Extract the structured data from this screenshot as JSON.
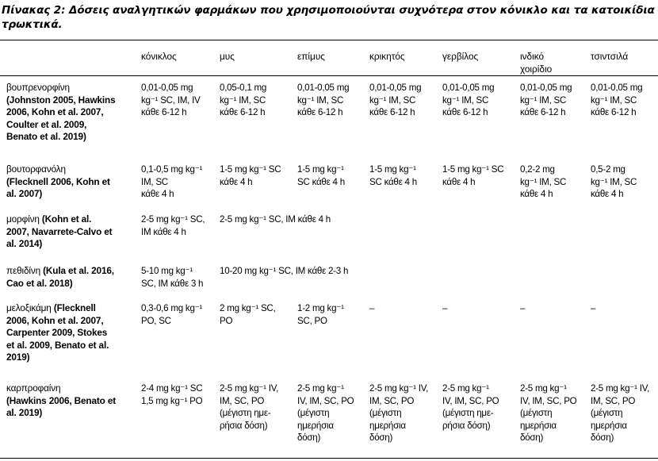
{
  "caption": {
    "label": "Πίνακας 2:",
    "text": "Δόσεις αναλγητικών φαρμάκων που χρησιμοποιούνται συχνότερα στον κόνικλο και τα κατοικίδια τρωκτικά."
  },
  "columns": [
    "κόνικλος",
    "μυς",
    "επίμυς",
    "κρικητός",
    "γερβίλος",
    "ινδικό\nχοιρίδιο",
    "τσιντσιλά"
  ],
  "rows": [
    {
      "drug": "βουπρενορφίνη",
      "refs": "(Johnston 2005, Hawkins\n2006, Kohn et al. 2007,\nCoulter et al. 2009,\nBenato et al. 2019)",
      "cells": [
        "0,01-0,05 mg\nkg⁻¹ SC, IM, IV\nκάθε 6-12 h",
        "0,05-0,1 mg\nkg⁻¹ IM, SC\nκάθε 6-12 h",
        "0,01-0,05 mg\nkg⁻¹ IM, SC\nκάθε 6-12 h",
        "0,01-0,05 mg\nkg⁻¹ IM, SC\nκάθε 6-12 h",
        "0,01-0,05 mg\nkg⁻¹ IM, SC\nκάθε 6-12 h",
        "0,01-0,05 mg\nkg⁻¹ IM, SC\nκάθε 6-12 h",
        "0,01-0,05 mg\nkg⁻¹ IM, SC\nκάθε 6-12 h"
      ]
    },
    {
      "drug": "βουτορφανόλη",
      "refs": "(Flecknell 2006, Kohn et\nal. 2007)",
      "cells": [
        "0,1-0,5 mg kg⁻¹\nIM, SC\nκάθε 4 h",
        "1-5 mg kg⁻¹ SC\nκάθε 4 h",
        "1-5 mg kg⁻¹\nSC κάθε 4 h",
        "1-5 mg kg⁻¹\nSC κάθε 4 h",
        "1-5 mg kg⁻¹ SC\nκάθε 4 h",
        "0,2-2 mg\nkg⁻¹ IM, SC\nκάθε 4 h",
        "0,5-2 mg\nkg⁻¹ IM, SC\nκάθε 4 h"
      ]
    },
    {
      "drug": "μορφίνη",
      "refs": " (Kohn et al.\n2007, Navarrete-Calvo et\nal. 2014)",
      "cells": [
        "2-5 mg kg⁻¹ SC,\nIM κάθε 4 h",
        "2-5 mg kg⁻¹ SC, IM κάθε 4 h"
      ]
    },
    {
      "drug": "πεθιδίνη",
      "refs": " (Kula et al. 2016,\nCao et al. 2018)",
      "cells": [
        "5-10 mg kg⁻¹\nSC, IM κάθε 3 h",
        "10-20 mg kg⁻¹ SC, IM κάθε 2-3 h"
      ]
    },
    {
      "drug": "μελοξικάμη",
      "refs": " (Flecknell\n2006, Kohn et al. 2007,\nCarpenter 2009, Stokes\net al. 2009, Benato et al.\n2019)",
      "cells": [
        "0,3-0,6 mg kg⁻¹\nPO, SC",
        "2 mg kg⁻¹ SC,\nPO",
        "1-2 mg kg⁻¹\nSC, PO",
        "–",
        "–",
        "–",
        "–"
      ]
    },
    {
      "drug": "καρπροφαίνη",
      "refs": "\n(Hawkins 2006, Benato et\nal. 2019)",
      "cells": [
        "2-4 mg kg⁻¹ SC\n1,5 mg kg⁻¹ PO",
        "2-5 mg kg⁻¹ IV,\nIM, SC, PO\n(μέγιστη ημε-\nρήσια δόση)",
        "2-5 mg kg⁻¹\nIV, IM, SC, PO\n(μέγιστη\nημερήσια\nδόση)",
        "2-5 mg kg⁻¹ IV,\nIM, SC, PO\n(μέγιστη\nημερήσια\nδόση)",
        "2-5 mg kg⁻¹\nIV, IM, SC, PO\n(μέγιστη ημε-\nρήσια δόση)",
        "2-5 mg kg⁻¹\nIV, IM, SC, PO\n(μέγιστη\nημερήσια\nδόση)",
        "2-5 mg kg⁻¹ IV,\nIM, SC, PO\n(μέγιστη\nημερήσια\nδόση)"
      ]
    }
  ]
}
